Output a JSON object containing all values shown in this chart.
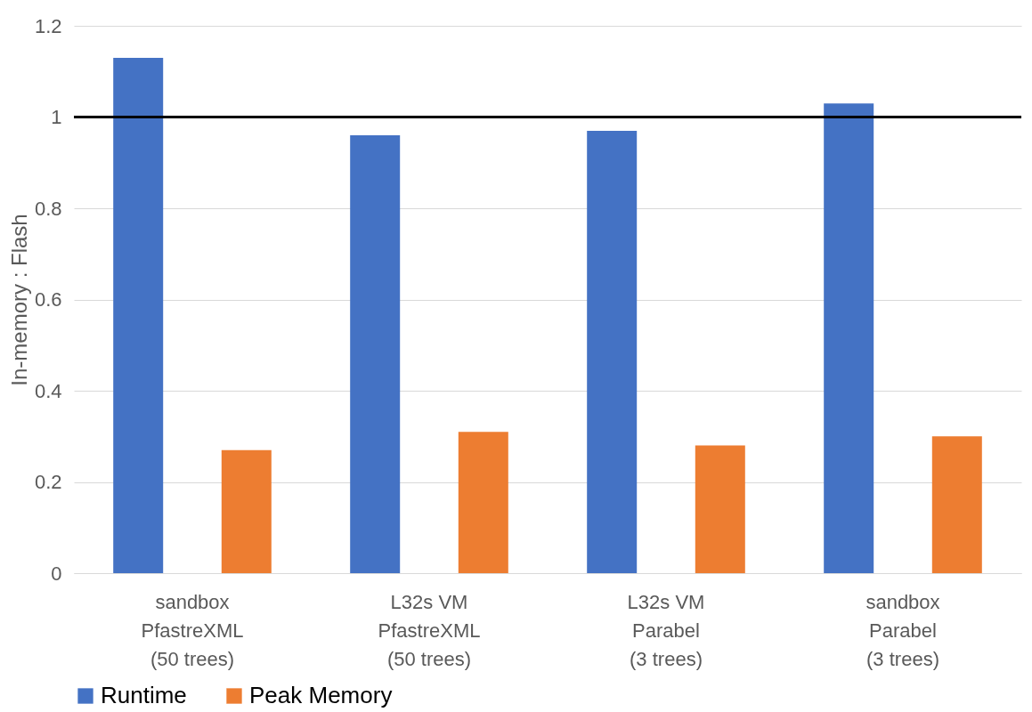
{
  "chart_data": {
    "type": "bar",
    "ylabel": "In-memory : Flash",
    "categories": [
      "sandbox\nPfastreXML\n(50 trees)",
      "L32s VM\nPfastreXML\n(50 trees)",
      "L32s VM\nParabel\n(3 trees)",
      "sandbox\nParabel\n(3 trees)"
    ],
    "series": [
      {
        "name": "Runtime",
        "color": "#4472c4",
        "values": [
          1.13,
          0.96,
          0.97,
          1.03
        ]
      },
      {
        "name": "Peak Memory",
        "color": "#ed7d31",
        "values": [
          0.27,
          0.31,
          0.28,
          0.3
        ]
      }
    ],
    "ylim": [
      0,
      1.2
    ],
    "yticks": [
      0,
      0.2,
      0.4,
      0.6,
      0.8,
      1,
      1.2
    ],
    "grid": "y",
    "legend": "bottom",
    "ref_lines": [
      {
        "axis": "y",
        "value": 1,
        "color": "#000000"
      }
    ]
  }
}
